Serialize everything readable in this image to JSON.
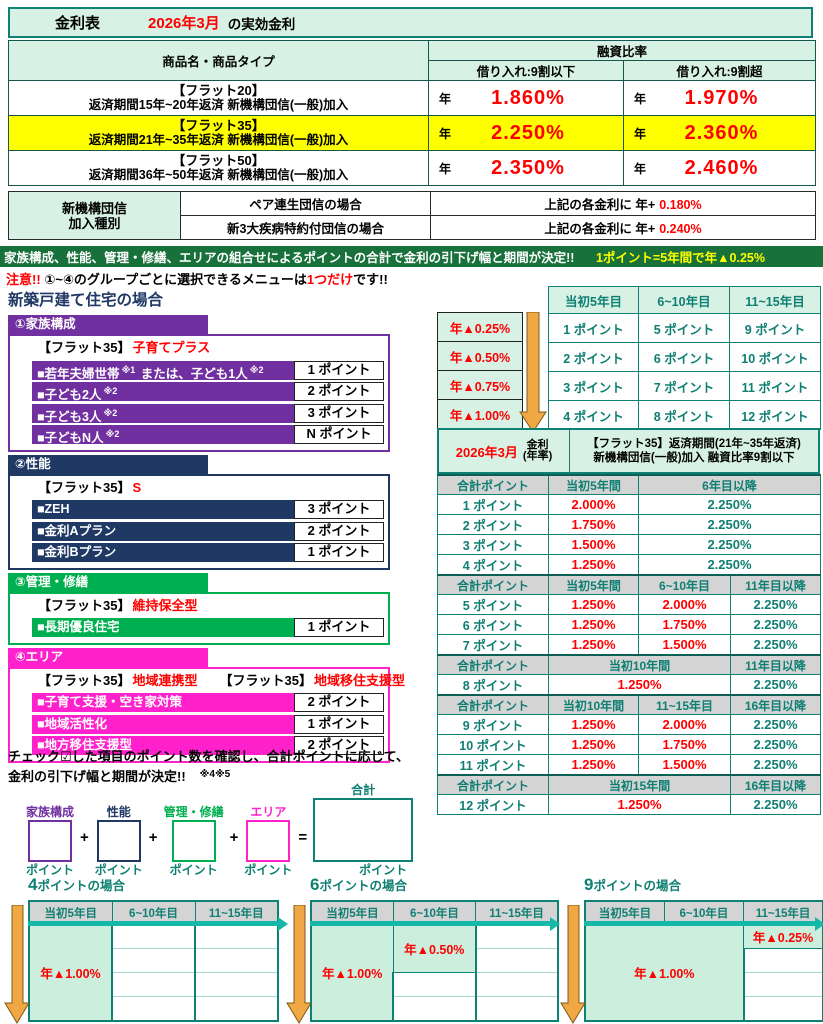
{
  "colors": {
    "mint": "#d7f2e4",
    "teal_border": "#0e8174",
    "teal_text": "#0e7f72",
    "red": "#ff0000",
    "yellow": "#ffff00",
    "banner_green": "#18713b",
    "gray": "#d4d4d4",
    "purple": "#7030a0",
    "navy": "#1f3864",
    "green": "#00b050",
    "magenta": "#ff22cc",
    "orange": "#efa843"
  },
  "header": {
    "title": "金利表",
    "month": "2026年3月",
    "suffix": "の実効金利"
  },
  "rate_table": {
    "col_product": "商品名・商品タイプ",
    "col_ratio": "融資比率",
    "col_under": "借り入れ:9割以下",
    "col_over": "借り入れ:9割超",
    "year_label": "年",
    "rows": [
      {
        "name": "【フラット20】",
        "desc": "返済期間15年~20年返済 新機構団信(一般)加入",
        "under": "1.860%",
        "over": "1.970%",
        "highlight": false
      },
      {
        "name": "【フラット35】",
        "desc": "返済期間21年~35年返済 新機構団信(一般)加入",
        "under": "2.250%",
        "over": "2.360%",
        "highlight": true
      },
      {
        "name": "【フラット50】",
        "desc": "返済期間36年~50年返済 新機構団信(一般)加入",
        "under": "2.350%",
        "over": "2.460%",
        "highlight": false
      }
    ]
  },
  "danshin": {
    "label_line1": "新機構団信",
    "label_line2": "加入種別",
    "rows": [
      {
        "case": "ペア連生団信の場合",
        "prefix": "上記の各金利に 年+",
        "value": "0.180%"
      },
      {
        "case": "新3大疾病特約付団信の場合",
        "prefix": "上記の各金利に 年+",
        "value": "0.240%"
      }
    ]
  },
  "banner": {
    "text": "家族構成、性能、管理・修繕、エリアの組合せによるポイントの合計で金利の引下げ幅と期間が決定!!",
    "highlight": "1ポイント=5年間で年▲0.25%"
  },
  "caution": {
    "prefix": "注意!!",
    "body1": "①~④のグループごとに選択できるメニューは",
    "em": "1つだけ",
    "body2": "です!!"
  },
  "section_title": "新築戸建て住宅の場合",
  "groups": [
    {
      "tab": "①家族構成",
      "color": "#7030a0",
      "brand": [
        {
          "label": "【フラット35】",
          "name": "子育てプラス"
        }
      ],
      "items": [
        {
          "segs": [
            {
              "t": "■若年夫婦世帯"
            },
            {
              "s": "※1"
            },
            {
              "t": " または、子ども1人"
            },
            {
              "s": "※2"
            }
          ],
          "pt": "1 ポイント"
        },
        {
          "segs": [
            {
              "t": "■子ども2人"
            },
            {
              "s": "※2"
            }
          ],
          "pt": "2 ポイント"
        },
        {
          "segs": [
            {
              "t": "■子ども3人"
            },
            {
              "s": "※2"
            }
          ],
          "pt": "3 ポイント"
        },
        {
          "segs": [
            {
              "t": "■子どもN人"
            },
            {
              "s": "※2"
            }
          ],
          "pt": "N ポイント"
        }
      ]
    },
    {
      "tab": "②性能",
      "color": "#1f3864",
      "brand": [
        {
          "label": "【フラット35】",
          "name": "S"
        }
      ],
      "items": [
        {
          "segs": [
            {
              "t": "■ZEH"
            }
          ],
          "pt": "3 ポイント"
        },
        {
          "segs": [
            {
              "t": "■金利Aプラン"
            }
          ],
          "pt": "2 ポイント"
        },
        {
          "segs": [
            {
              "t": "■金利Bプラン"
            }
          ],
          "pt": "1 ポイント"
        }
      ]
    },
    {
      "tab": "③管理・修繕",
      "color": "#00b050",
      "brand": [
        {
          "label": "【フラット35】",
          "name": "維持保全型"
        }
      ],
      "items": [
        {
          "segs": [
            {
              "t": "■長期優良住宅"
            }
          ],
          "pt": "1 ポイント"
        }
      ]
    },
    {
      "tab": "④エリア",
      "color": "#ff22cc",
      "brand": [
        {
          "label": "【フラット35】",
          "name": "地域連携型"
        },
        {
          "label": "【フラット35】",
          "name": "地域移住支援型"
        }
      ],
      "items": [
        {
          "segs": [
            {
              "t": "■子育て支援・空き家対策"
            }
          ],
          "pt": "2 ポイント"
        },
        {
          "segs": [
            {
              "t": "■地域活性化"
            }
          ],
          "pt": "1 ポイント"
        },
        {
          "segs": [
            {
              "t": "■地方移住支援型"
            }
          ],
          "pt": "2 ポイント"
        }
      ]
    }
  ],
  "check_note": {
    "line1": "チェック☑した項目のポイント数を確認し、合計ポイントに応じて、",
    "line2": "金利の引下げ幅と期間が決定!!",
    "refs": "※4※5"
  },
  "sum_diagram": {
    "boxes": [
      {
        "label": "家族構成",
        "color": "#7030a0"
      },
      {
        "label": "性能",
        "color": "#1f3864"
      },
      {
        "label": "管理・修繕",
        "color": "#00b050"
      },
      {
        "label": "エリア",
        "color": "#ff22cc"
      }
    ],
    "operators": [
      "+",
      "+",
      "+",
      "="
    ],
    "unit": "ポイント",
    "total_label": "合計"
  },
  "schedule": {
    "headers": [
      "当初5年目",
      "6~10年目",
      "11~15年目"
    ],
    "rows": [
      {
        "discount": "年▲0.25%",
        "points": [
          "1 ポイント",
          "5 ポイント",
          "9 ポイント"
        ]
      },
      {
        "discount": "年▲0.50%",
        "points": [
          "2 ポイント",
          "6 ポイント",
          "10 ポイント"
        ]
      },
      {
        "discount": "年▲0.75%",
        "points": [
          "3 ポイント",
          "7 ポイント",
          "11 ポイント"
        ]
      },
      {
        "discount": "年▲1.00%",
        "points": [
          "4 ポイント",
          "8 ポイント",
          "12 ポイント"
        ]
      }
    ]
  },
  "rate_detail": {
    "month": "2026年3月",
    "rate_label1": "金利",
    "rate_label2": "(年率)",
    "desc_line1": "【フラット35】返済期間(21年~35年返済)",
    "desc_line2": "新機構団信(一般)加入 融資比率9割以下",
    "sections": [
      {
        "headers": [
          {
            "t": "合計ポイント"
          },
          {
            "t": "当初5年間"
          },
          {
            "t": "6年目以降",
            "span": 2
          }
        ],
        "rows": [
          {
            "cells": [
              {
                "t": "1 ポイント",
                "pt": true
              },
              {
                "t": "2.000%",
                "red": true
              },
              {
                "t": "2.250%",
                "span": 2
              }
            ]
          },
          {
            "cells": [
              {
                "t": "2 ポイント",
                "pt": true
              },
              {
                "t": "1.750%",
                "red": true
              },
              {
                "t": "2.250%",
                "span": 2
              }
            ]
          },
          {
            "cells": [
              {
                "t": "3 ポイント",
                "pt": true
              },
              {
                "t": "1.500%",
                "red": true
              },
              {
                "t": "2.250%",
                "span": 2
              }
            ]
          },
          {
            "cells": [
              {
                "t": "4 ポイント",
                "pt": true
              },
              {
                "t": "1.250%",
                "red": true
              },
              {
                "t": "2.250%",
                "span": 2
              }
            ]
          }
        ]
      },
      {
        "headers": [
          {
            "t": "合計ポイント"
          },
          {
            "t": "当初5年間"
          },
          {
            "t": "6~10年目"
          },
          {
            "t": "11年目以降"
          }
        ],
        "rows": [
          {
            "cells": [
              {
                "t": "5 ポイント",
                "pt": true
              },
              {
                "t": "1.250%",
                "red": true
              },
              {
                "t": "2.000%",
                "red": true
              },
              {
                "t": "2.250%"
              }
            ]
          },
          {
            "cells": [
              {
                "t": "6 ポイント",
                "pt": true
              },
              {
                "t": "1.250%",
                "red": true
              },
              {
                "t": "1.750%",
                "red": true
              },
              {
                "t": "2.250%"
              }
            ]
          },
          {
            "cells": [
              {
                "t": "7 ポイント",
                "pt": true
              },
              {
                "t": "1.250%",
                "red": true
              },
              {
                "t": "1.500%",
                "red": true
              },
              {
                "t": "2.250%"
              }
            ]
          }
        ]
      },
      {
        "headers": [
          {
            "t": "合計ポイント"
          },
          {
            "t": "当初10年間",
            "span": 2
          },
          {
            "t": "11年目以降"
          }
        ],
        "rows": [
          {
            "cells": [
              {
                "t": "8 ポイント",
                "pt": true
              },
              {
                "t": "1.250%",
                "red": true,
                "span": 2
              },
              {
                "t": "2.250%"
              }
            ]
          }
        ]
      },
      {
        "headers": [
          {
            "t": "合計ポイント"
          },
          {
            "t": "当初10年間"
          },
          {
            "t": "11~15年目"
          },
          {
            "t": "16年目以降"
          }
        ],
        "rows": [
          {
            "cells": [
              {
                "t": "9 ポイント",
                "pt": true
              },
              {
                "t": "1.250%",
                "red": true
              },
              {
                "t": "2.000%",
                "red": true
              },
              {
                "t": "2.250%"
              }
            ]
          },
          {
            "cells": [
              {
                "t": "10 ポイント",
                "pt": true
              },
              {
                "t": "1.250%",
                "red": true
              },
              {
                "t": "1.750%",
                "red": true
              },
              {
                "t": "2.250%"
              }
            ]
          },
          {
            "cells": [
              {
                "t": "11 ポイント",
                "pt": true
              },
              {
                "t": "1.250%",
                "red": true
              },
              {
                "t": "1.500%",
                "red": true
              },
              {
                "t": "2.250%"
              }
            ]
          }
        ]
      },
      {
        "headers": [
          {
            "t": "合計ポイント"
          },
          {
            "t": "当初15年間",
            "span": 2
          },
          {
            "t": "16年目以降"
          }
        ],
        "rows": [
          {
            "cells": [
              {
                "t": "12 ポイント",
                "pt": true
              },
              {
                "t": "1.250%",
                "red": true,
                "span": 2
              },
              {
                "t": "2.250%"
              }
            ]
          }
        ]
      }
    ]
  },
  "examples": [
    {
      "num": "4",
      "suffix": "ポイントの場合",
      "headers": [
        "当初5年目",
        "6~10年目",
        "11~15年目"
      ],
      "blocks": [
        {
          "col": 0,
          "row": 0,
          "rows": 4,
          "cols": 1,
          "label": "年▲1.00%"
        }
      ]
    },
    {
      "num": "6",
      "suffix": "ポイントの場合",
      "headers": [
        "当初5年目",
        "6~10年目",
        "11~15年目"
      ],
      "blocks": [
        {
          "col": 0,
          "row": 0,
          "rows": 4,
          "cols": 1,
          "label": "年▲1.00%"
        },
        {
          "col": 1,
          "row": 0,
          "rows": 2,
          "cols": 1,
          "label": "年▲0.50%"
        }
      ]
    },
    {
      "num": "9",
      "suffix": "ポイントの場合",
      "headers": [
        "当初5年目",
        "6~10年目",
        "11~15年目"
      ],
      "blocks": [
        {
          "col": 0,
          "row": 0,
          "rows": 4,
          "cols": 2,
          "label": "年▲1.00%"
        },
        {
          "col": 2,
          "row": 0,
          "rows": 1,
          "cols": 1,
          "label": "年▲0.25%"
        }
      ]
    }
  ]
}
